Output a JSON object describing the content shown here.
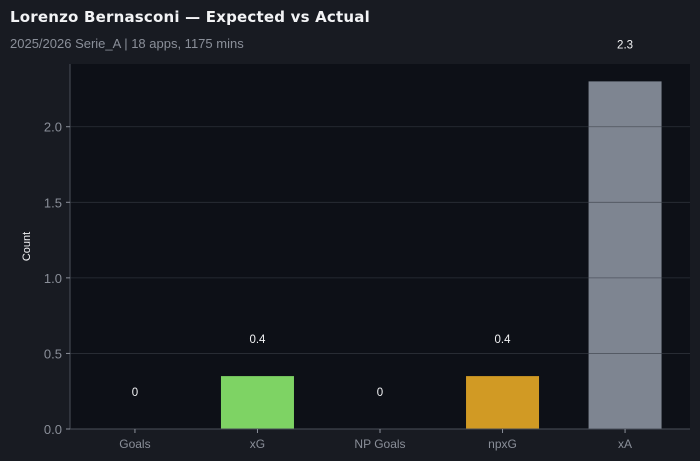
{
  "header": {
    "title": "Lorenzo Bernasconi — Expected vs Actual",
    "subtitle": "2025/2026 Serie_A | 18 apps, 1175 mins"
  },
  "chart_data": {
    "type": "bar",
    "title": "Lorenzo Bernasconi — Expected vs Actual",
    "subtitle": "2025/2026 Serie_A | 18 apps, 1175 mins",
    "xlabel": "",
    "ylabel": "Count",
    "categories": [
      "Goals",
      "xG",
      "NP Goals",
      "npxG",
      "xA"
    ],
    "values": [
      0,
      0.35,
      0,
      0.35,
      2.3
    ],
    "data_labels": [
      "0",
      "0.4",
      "0",
      "0.4",
      "2.3"
    ],
    "colors": [
      "#7ed364",
      "#7ed364",
      "#d19a24",
      "#d19a24",
      "#7e8591"
    ],
    "ylim": [
      0,
      2.415
    ],
    "yticks": [
      0.0,
      0.5,
      1.0,
      1.5,
      2.0
    ],
    "ytick_labels": [
      "0.0",
      "0.5",
      "1.0",
      "1.5",
      "2.0"
    ],
    "grid": "y",
    "background": "#181b22",
    "plot_background": "#0d1017"
  }
}
